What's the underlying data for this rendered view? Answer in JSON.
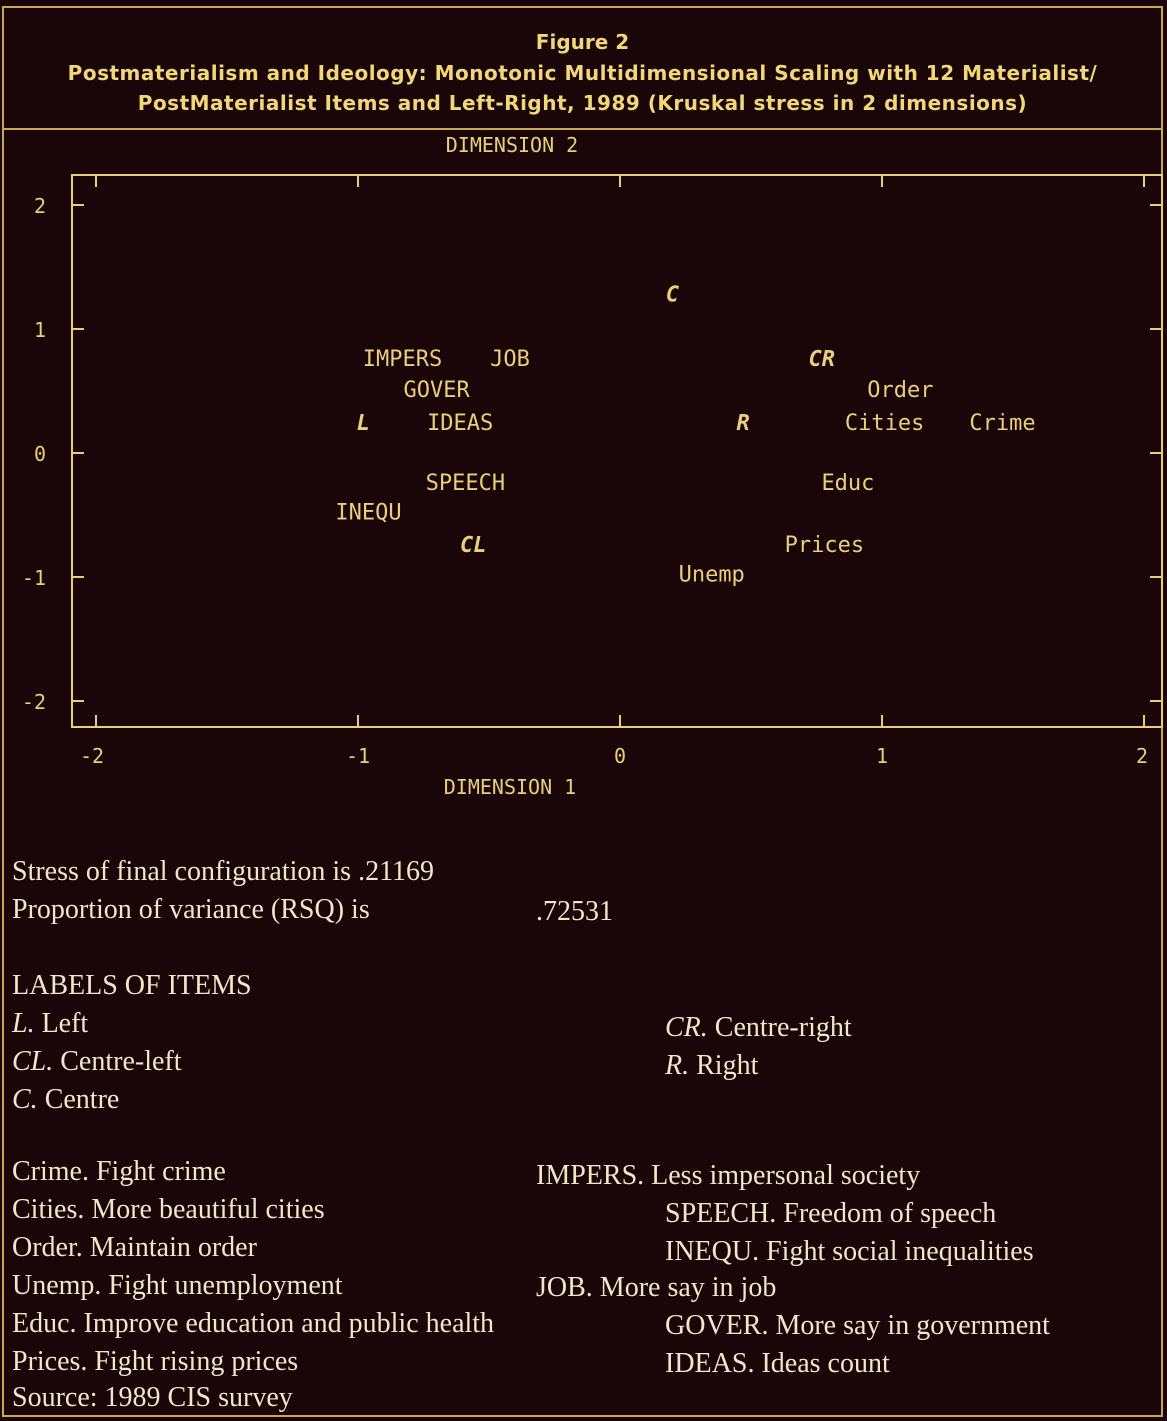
{
  "header": {
    "figure": "Figure 2",
    "title_line1": "Postmaterialism and Ideology: Monotonic Multidimensional Scaling with 12 Materialist/",
    "title_line2": "PostMaterialist Items and Left-Right, 1989 (Kruskal stress in 2 dimensions)"
  },
  "chart_data": {
    "type": "scatter",
    "xlabel": "DIMENSION 1",
    "ylabel": "DIMENSION 2",
    "xlim": [
      -2,
      2
    ],
    "ylim": [
      -2.2,
      2.2
    ],
    "xticks": [
      "-2",
      "-1",
      "0",
      "1",
      "2"
    ],
    "yticks": [
      "2",
      "1",
      "0",
      "-1",
      "-2"
    ],
    "grid": false,
    "points": [
      {
        "label": "C",
        "x": 0.2,
        "y": 1.28,
        "italic": true
      },
      {
        "label": "IMPERS",
        "x": -0.83,
        "y": 0.76,
        "italic": false
      },
      {
        "label": "JOB",
        "x": -0.42,
        "y": 0.76,
        "italic": false
      },
      {
        "label": "CR",
        "x": 0.77,
        "y": 0.76,
        "italic": true
      },
      {
        "label": "GOVER",
        "x": -0.7,
        "y": 0.51,
        "italic": false
      },
      {
        "label": "Order",
        "x": 1.07,
        "y": 0.51,
        "italic": false
      },
      {
        "label": "L",
        "x": -0.98,
        "y": 0.24,
        "italic": true
      },
      {
        "label": "IDEAS",
        "x": -0.61,
        "y": 0.24,
        "italic": false
      },
      {
        "label": "R",
        "x": 0.47,
        "y": 0.24,
        "italic": true
      },
      {
        "label": "Cities",
        "x": 1.01,
        "y": 0.24,
        "italic": false
      },
      {
        "label": "Crime",
        "x": 1.46,
        "y": 0.24,
        "italic": false
      },
      {
        "label": "SPEECH",
        "x": -0.59,
        "y": -0.24,
        "italic": false
      },
      {
        "label": "Educ",
        "x": 0.87,
        "y": -0.24,
        "italic": false
      },
      {
        "label": "INEQU",
        "x": -0.96,
        "y": -0.48,
        "italic": false
      },
      {
        "label": "CL",
        "x": -0.56,
        "y": -0.74,
        "italic": true
      },
      {
        "label": "Prices",
        "x": 0.78,
        "y": -0.74,
        "italic": false
      },
      {
        "label": "Unemp",
        "x": 0.35,
        "y": -0.98,
        "italic": false
      }
    ]
  },
  "stats": {
    "stress_label": "Stress of final configuration is",
    "stress_value": ".21169",
    "rsq_label": "Proportion of variance (RSQ) is",
    "rsq_value": ".72531"
  },
  "labels": {
    "heading": "LABELS OF ITEMS",
    "left": {
      "abbr": "L.",
      "text": "Left"
    },
    "centre_left": {
      "abbr": "CL.",
      "text": "Centre-left"
    },
    "centre": {
      "abbr": "C.",
      "text": "Centre"
    },
    "centre_right": {
      "abbr": "CR.",
      "text": "Centre-right"
    },
    "right": {
      "abbr": "R.",
      "text": "Right"
    },
    "crime": "Crime. Fight crime",
    "cities": "Cities. More beautiful cities",
    "order": "Order. Maintain order",
    "unemp": "Unemp. Fight unemployment",
    "educ": "Educ. Improve education and public health",
    "prices": "Prices. Fight rising prices",
    "impers": "IMPERS. Less impersonal society",
    "speech": "SPEECH. Freedom of speech",
    "inequ": "INEQU. Fight social inequalities",
    "job": "JOB. More say in job",
    "gover": "GOVER. More say in government",
    "ideas": "IDEAS. Ideas count",
    "source": "Source: 1989 CIS survey"
  }
}
